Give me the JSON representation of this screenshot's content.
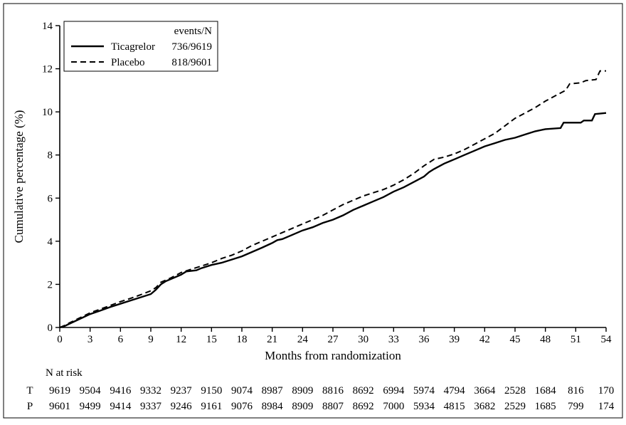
{
  "figure": {
    "background": "#ffffff",
    "border_color": "#000000",
    "line_color": "#000000"
  },
  "chart_data": {
    "type": "line",
    "title": "",
    "xlabel": "Months from randomization",
    "ylabel": "Cumulative percentage (%)",
    "xlim": [
      0,
      54
    ],
    "ylim": [
      0,
      14
    ],
    "xticks": [
      0,
      3,
      6,
      9,
      12,
      15,
      18,
      21,
      24,
      27,
      30,
      33,
      36,
      39,
      42,
      45,
      48,
      51,
      54
    ],
    "yticks": [
      0,
      2,
      4,
      6,
      8,
      10,
      12,
      14
    ],
    "grid": false,
    "legend": {
      "position": "upper-left",
      "header": "events/N",
      "entries": [
        {
          "label": "Ticagrelor",
          "events": "736/9619",
          "line": "solid"
        },
        {
          "label": "Placebo",
          "events": "818/9601",
          "line": "dashed"
        }
      ]
    },
    "series": [
      {
        "name": "Ticagrelor",
        "style": "solid",
        "color": "#000000",
        "points": [
          [
            0,
            0
          ],
          [
            0.5,
            0.07
          ],
          [
            1,
            0.18
          ],
          [
            2,
            0.4
          ],
          [
            3,
            0.62
          ],
          [
            4,
            0.78
          ],
          [
            5,
            0.95
          ],
          [
            6,
            1.1
          ],
          [
            7,
            1.25
          ],
          [
            8,
            1.4
          ],
          [
            9,
            1.55
          ],
          [
            9.5,
            1.75
          ],
          [
            10,
            2.0
          ],
          [
            10.5,
            2.15
          ],
          [
            11,
            2.25
          ],
          [
            12,
            2.45
          ],
          [
            12.5,
            2.6
          ],
          [
            13.5,
            2.65
          ],
          [
            14,
            2.75
          ],
          [
            15,
            2.9
          ],
          [
            16,
            3.0
          ],
          [
            17,
            3.15
          ],
          [
            18,
            3.3
          ],
          [
            19,
            3.5
          ],
          [
            20,
            3.7
          ],
          [
            21,
            3.92
          ],
          [
            21.5,
            4.05
          ],
          [
            22,
            4.1
          ],
          [
            23,
            4.3
          ],
          [
            24,
            4.5
          ],
          [
            25,
            4.65
          ],
          [
            26,
            4.85
          ],
          [
            27,
            5.0
          ],
          [
            28,
            5.2
          ],
          [
            29,
            5.45
          ],
          [
            30,
            5.65
          ],
          [
            31,
            5.85
          ],
          [
            32,
            6.05
          ],
          [
            33,
            6.3
          ],
          [
            34,
            6.5
          ],
          [
            35,
            6.75
          ],
          [
            36,
            7.0
          ],
          [
            36.5,
            7.2
          ],
          [
            37,
            7.35
          ],
          [
            38,
            7.6
          ],
          [
            39,
            7.8
          ],
          [
            40,
            8.0
          ],
          [
            41,
            8.2
          ],
          [
            42,
            8.4
          ],
          [
            43,
            8.55
          ],
          [
            44,
            8.7
          ],
          [
            45,
            8.8
          ],
          [
            46,
            8.95
          ],
          [
            47,
            9.1
          ],
          [
            48,
            9.2
          ],
          [
            49.5,
            9.25
          ],
          [
            49.8,
            9.5
          ],
          [
            51.5,
            9.5
          ],
          [
            51.8,
            9.6
          ],
          [
            52.6,
            9.6
          ],
          [
            52.9,
            9.9
          ],
          [
            54,
            9.95
          ]
        ]
      },
      {
        "name": "Placebo",
        "style": "dashed",
        "color": "#000000",
        "points": [
          [
            0,
            0
          ],
          [
            0.5,
            0.1
          ],
          [
            1,
            0.22
          ],
          [
            2,
            0.45
          ],
          [
            3,
            0.68
          ],
          [
            4,
            0.85
          ],
          [
            5,
            1.02
          ],
          [
            6,
            1.2
          ],
          [
            7,
            1.35
          ],
          [
            8,
            1.52
          ],
          [
            9,
            1.7
          ],
          [
            9.5,
            1.85
          ],
          [
            10,
            2.1
          ],
          [
            11,
            2.3
          ],
          [
            12,
            2.55
          ],
          [
            13,
            2.7
          ],
          [
            14,
            2.85
          ],
          [
            15,
            3.0
          ],
          [
            16,
            3.2
          ],
          [
            17,
            3.35
          ],
          [
            18,
            3.55
          ],
          [
            19,
            3.8
          ],
          [
            20,
            4.0
          ],
          [
            21,
            4.2
          ],
          [
            22,
            4.4
          ],
          [
            23,
            4.6
          ],
          [
            24,
            4.8
          ],
          [
            25,
            5.0
          ],
          [
            26,
            5.2
          ],
          [
            27,
            5.45
          ],
          [
            28,
            5.7
          ],
          [
            29,
            5.9
          ],
          [
            30,
            6.1
          ],
          [
            31,
            6.25
          ],
          [
            32,
            6.4
          ],
          [
            33,
            6.6
          ],
          [
            34,
            6.85
          ],
          [
            35,
            7.15
          ],
          [
            36,
            7.5
          ],
          [
            37,
            7.8
          ],
          [
            38,
            7.9
          ],
          [
            39,
            8.05
          ],
          [
            40,
            8.25
          ],
          [
            41,
            8.5
          ],
          [
            42,
            8.75
          ],
          [
            43,
            9.0
          ],
          [
            44,
            9.35
          ],
          [
            45,
            9.7
          ],
          [
            46,
            9.95
          ],
          [
            47,
            10.2
          ],
          [
            48,
            10.5
          ],
          [
            49,
            10.75
          ],
          [
            50,
            11.0
          ],
          [
            50.4,
            11.3
          ],
          [
            51.5,
            11.35
          ],
          [
            52,
            11.45
          ],
          [
            53,
            11.5
          ],
          [
            53.4,
            11.9
          ],
          [
            54,
            11.9
          ]
        ]
      }
    ],
    "risk_table": {
      "title": "N at risk",
      "months": [
        0,
        3,
        6,
        9,
        12,
        15,
        18,
        21,
        24,
        27,
        30,
        33,
        36,
        39,
        42,
        45,
        48,
        51,
        54
      ],
      "rows": [
        {
          "label": "T",
          "values": [
            9619,
            9504,
            9416,
            9332,
            9237,
            9150,
            9074,
            8987,
            8909,
            8816,
            8692,
            6994,
            5974,
            4794,
            3664,
            2528,
            1684,
            816,
            170
          ]
        },
        {
          "label": "P",
          "values": [
            9601,
            9499,
            9414,
            9337,
            9246,
            9161,
            9076,
            8984,
            8909,
            8807,
            8692,
            7000,
            5934,
            4815,
            3682,
            2529,
            1685,
            799,
            174
          ]
        }
      ]
    }
  }
}
